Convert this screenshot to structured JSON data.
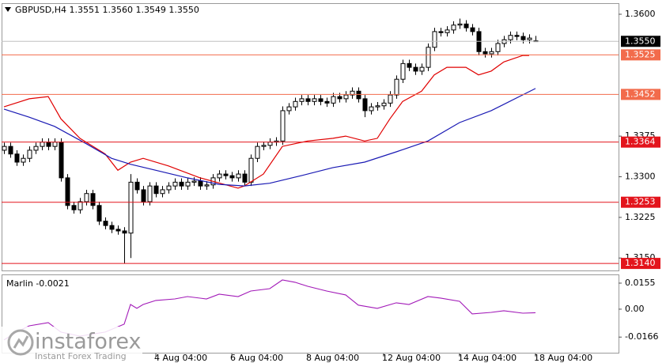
{
  "chart_data": [
    {
      "type": "candlestick",
      "title": "GBPUSD,H4  1.3551 1.3560 1.3549 1.3550",
      "xlim": [
        -0.375,
        97.125
      ],
      "ylim": [
        1.3127,
        1.3619
      ],
      "yticks": [
        {
          "value": 1.36,
          "label": "1.3600"
        },
        1.3375,
        {
          "value": 1.33,
          "label": "1.3300"
        },
        1.3225,
        {
          "value": 1.315,
          "label": "1.3150"
        }
      ],
      "xticks": [
        {
          "value": 24,
          "label": "4 Aug 04:00"
        },
        {
          "value": 36,
          "label": "6 Aug 04:00"
        },
        {
          "value": 48,
          "label": "8 Aug 04:00"
        },
        {
          "value": 60,
          "label": "12 Aug 04:00"
        },
        {
          "value": 72,
          "label": "14 Aug 04:00"
        },
        {
          "value": 84,
          "label": "18 Aug 04:00"
        }
      ],
      "grid": false,
      "bull_color": "#ffffff",
      "bear_color": "#000000",
      "open": [
        1.3349,
        1.3356,
        1.3342,
        1.3327,
        1.3334,
        1.3349,
        1.3356,
        1.3364,
        1.3356,
        1.3364,
        1.3298,
        1.3247,
        1.3239,
        1.3254,
        1.3269,
        1.3247,
        1.3218,
        1.321,
        1.3203,
        1.32,
        1.3196,
        1.329,
        1.3276,
        1.3254,
        1.3283,
        1.3269,
        1.3276,
        1.3283,
        1.329,
        1.3283,
        1.329,
        1.3292,
        1.3283,
        1.3285,
        1.3298,
        1.3305,
        1.3302,
        1.3298,
        1.3305,
        1.329,
        1.3334,
        1.3356,
        1.3358,
        1.3364,
        1.3366,
        1.3422,
        1.3429,
        1.3439,
        1.3444,
        1.3439,
        1.3444,
        1.3439,
        1.3436,
        1.3448,
        1.3444,
        1.3451,
        1.3458,
        1.3444,
        1.3422,
        1.3429,
        1.3431,
        1.3436,
        1.3451,
        1.348,
        1.3509,
        1.3502,
        1.3495,
        1.3502,
        1.3539,
        1.3568,
        1.3566,
        1.3571,
        1.358,
        1.3582,
        1.3575,
        1.3568,
        1.3531,
        1.3527,
        1.3531,
        1.3546,
        1.3553,
        1.3561,
        1.3559,
        1.3553,
        1.3551
      ],
      "high": [
        1.3363,
        1.3363,
        1.3349,
        1.3341,
        1.3356,
        1.3363,
        1.3371,
        1.3371,
        1.3371,
        1.3371,
        1.3305,
        1.3254,
        1.3261,
        1.3276,
        1.3276,
        1.3254,
        1.3225,
        1.3217,
        1.321,
        1.3207,
        1.3305,
        1.3297,
        1.3283,
        1.329,
        1.329,
        1.3283,
        1.329,
        1.3297,
        1.3297,
        1.3297,
        1.3299,
        1.3299,
        1.3292,
        1.3305,
        1.3312,
        1.3312,
        1.3309,
        1.3312,
        1.3312,
        1.3341,
        1.3363,
        1.3365,
        1.3371,
        1.3373,
        1.343,
        1.3436,
        1.3446,
        1.3451,
        1.3451,
        1.3451,
        1.3451,
        1.3446,
        1.3455,
        1.3455,
        1.3458,
        1.3465,
        1.3465,
        1.3451,
        1.3436,
        1.3438,
        1.3443,
        1.3458,
        1.3487,
        1.3516,
        1.3516,
        1.3509,
        1.3509,
        1.3546,
        1.3575,
        1.3575,
        1.3578,
        1.3587,
        1.3592,
        1.3589,
        1.3582,
        1.3575,
        1.3538,
        1.3538,
        1.3553,
        1.356,
        1.3568,
        1.3568,
        1.3566,
        1.3563,
        1.356
      ],
      "low": [
        1.3342,
        1.3335,
        1.332,
        1.332,
        1.3327,
        1.3342,
        1.3349,
        1.3349,
        1.3349,
        1.3291,
        1.324,
        1.3232,
        1.3232,
        1.3247,
        1.324,
        1.3211,
        1.3203,
        1.3196,
        1.3193,
        1.314,
        1.315,
        1.3269,
        1.3247,
        1.3247,
        1.3262,
        1.3262,
        1.3269,
        1.3276,
        1.3276,
        1.3276,
        1.3283,
        1.3276,
        1.3276,
        1.3278,
        1.3291,
        1.3295,
        1.3291,
        1.3291,
        1.3283,
        1.3283,
        1.3327,
        1.3349,
        1.3351,
        1.3357,
        1.3359,
        1.3415,
        1.3422,
        1.3432,
        1.3432,
        1.3432,
        1.3432,
        1.3429,
        1.3429,
        1.3437,
        1.3437,
        1.3444,
        1.3437,
        1.341,
        1.3415,
        1.3422,
        1.3424,
        1.3429,
        1.3444,
        1.3473,
        1.3495,
        1.3488,
        1.3488,
        1.3495,
        1.3532,
        1.3559,
        1.3559,
        1.3564,
        1.3573,
        1.3568,
        1.3561,
        1.3524,
        1.352,
        1.352,
        1.3524,
        1.3539,
        1.3546,
        1.3552,
        1.3546,
        1.3546,
        1.3549
      ],
      "close": [
        1.3356,
        1.3342,
        1.3327,
        1.3334,
        1.3349,
        1.3356,
        1.3364,
        1.3356,
        1.3364,
        1.3298,
        1.3247,
        1.3239,
        1.3254,
        1.3269,
        1.3247,
        1.3218,
        1.321,
        1.3203,
        1.32,
        1.3196,
        1.329,
        1.3276,
        1.3254,
        1.3283,
        1.3269,
        1.3276,
        1.3283,
        1.329,
        1.3283,
        1.329,
        1.3292,
        1.3283,
        1.3285,
        1.3298,
        1.3305,
        1.3302,
        1.3298,
        1.3305,
        1.329,
        1.3334,
        1.3356,
        1.3358,
        1.3364,
        1.3366,
        1.3422,
        1.3429,
        1.3439,
        1.3444,
        1.3439,
        1.3444,
        1.3439,
        1.3436,
        1.3448,
        1.3444,
        1.3451,
        1.3458,
        1.3444,
        1.3422,
        1.3429,
        1.3431,
        1.3436,
        1.3451,
        1.348,
        1.3509,
        1.3502,
        1.3495,
        1.3502,
        1.3539,
        1.3568,
        1.3566,
        1.3571,
        1.358,
        1.3582,
        1.3575,
        1.3568,
        1.3531,
        1.3527,
        1.3531,
        1.3546,
        1.3553,
        1.3561,
        1.3559,
        1.3553,
        1.3556,
        1.355
      ],
      "series": [
        {
          "color": "#e00000",
          "x": [
            0,
            4,
            7,
            9,
            12,
            16,
            18,
            20,
            22,
            26,
            31,
            37,
            38,
            41,
            44,
            48,
            52,
            54,
            57,
            59,
            61,
            63,
            66,
            68,
            70,
            73,
            75,
            77,
            79,
            82,
            83
          ],
          "values": [
            1.3429,
            1.3444,
            1.3448,
            1.3407,
            1.3371,
            1.3342,
            1.3312,
            1.3327,
            1.3334,
            1.332,
            1.3298,
            1.3279,
            1.3283,
            1.3305,
            1.3356,
            1.3366,
            1.3371,
            1.3375,
            1.3366,
            1.3371,
            1.3407,
            1.3439,
            1.3458,
            1.3488,
            1.3502,
            1.3502,
            1.3488,
            1.3495,
            1.3512,
            1.3524,
            1.3524
          ]
        },
        {
          "color": "#1a1ab4",
          "x": [
            0,
            4,
            8,
            13,
            17,
            20,
            24,
            29,
            34,
            38,
            42,
            47,
            52,
            57,
            62,
            67,
            72,
            77,
            84
          ],
          "values": [
            1.3425,
            1.341,
            1.3393,
            1.3361,
            1.3334,
            1.3323,
            1.3312,
            1.3298,
            1.3286,
            1.3283,
            1.3288,
            1.3302,
            1.3317,
            1.3327,
            1.3346,
            1.3366,
            1.34,
            1.3422,
            1.3463
          ]
        }
      ],
      "levels": [
        {
          "value": 1.3525,
          "label": "1.3525",
          "color": "#f26b4b"
        },
        {
          "value": 1.3452,
          "label": "1.3452",
          "color": "#f26b4b"
        },
        {
          "value": 1.3364,
          "label": "1.3364",
          "color": "#e3141c"
        },
        {
          "value": 1.3253,
          "label": "1.3253",
          "color": "#e3141c"
        },
        {
          "value": 1.314,
          "label": "1.3140",
          "color": "#e3141c"
        }
      ],
      "last_price": {
        "value": 1.355,
        "label": "1.3550",
        "color": "#000000"
      }
    },
    {
      "type": "line",
      "title": "Marlin -0.0021",
      "color": "#a21ab8",
      "xlim": [
        -0.375,
        97.125
      ],
      "ylim": [
        -0.0259,
        0.0202
      ],
      "yticks": [
        0.0155,
        {
          "value": 0,
          "label": "0.00"
        },
        -0.0166
      ],
      "x": [
        0,
        2,
        4,
        7,
        9,
        12,
        16,
        19,
        20,
        21,
        22,
        24,
        27,
        29,
        32,
        34,
        37,
        39,
        42,
        44,
        46,
        48,
        51,
        54,
        56,
        59,
        62,
        64,
        67,
        69,
        72,
        74,
        77,
        79,
        82,
        84
      ],
      "values": [
        -0.0183,
        -0.0136,
        -0.0099,
        -0.008,
        -0.0136,
        -0.016,
        -0.0136,
        -0.0089,
        0.0028,
        0.0005,
        0.0028,
        0.0052,
        0.0061,
        0.0075,
        0.0061,
        0.0089,
        0.0075,
        0.0108,
        0.0122,
        0.0174,
        0.016,
        0.0136,
        0.0108,
        0.0085,
        0.0024,
        0.0005,
        0.0038,
        0.0028,
        0.0075,
        0.0066,
        0.0047,
        -0.0028,
        -0.0019,
        -0.0009,
        -0.0024,
        -0.0021
      ]
    }
  ],
  "watermark": {
    "brand": "instaforex",
    "tagline": "Instant Forex Trading"
  }
}
